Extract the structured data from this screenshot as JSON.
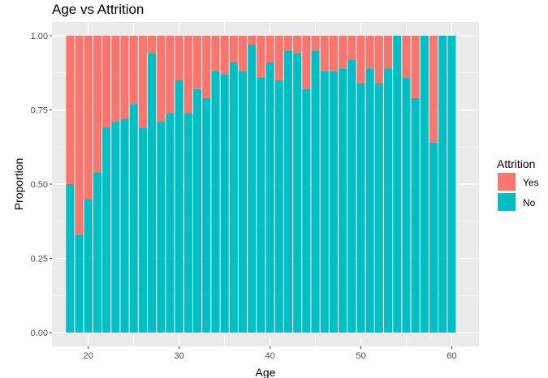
{
  "chart_data": {
    "type": "bar",
    "stacked": true,
    "title": "Age vs Attrition",
    "xlabel": "Age",
    "ylabel": "Proportion",
    "xlim": [
      16,
      63
    ],
    "ylim": [
      0,
      1
    ],
    "x_ticks": [
      20,
      30,
      40,
      50,
      60
    ],
    "y_ticks": [
      0,
      0.25,
      0.5,
      0.75,
      1
    ],
    "y_tick_labels": [
      "0.00",
      "0.25",
      "0.50",
      "0.75",
      "1.00"
    ],
    "legend_title": "Attrition",
    "legend_position": "right",
    "grid": true,
    "colors": {
      "Yes": "#F8766D",
      "No": "#00BFC4",
      "panel": "#EBEBEB",
      "grid": "#FFFFFF"
    },
    "x": [
      18,
      19,
      20,
      21,
      22,
      23,
      24,
      25,
      26,
      27,
      28,
      29,
      30,
      31,
      32,
      33,
      34,
      35,
      36,
      37,
      38,
      39,
      40,
      41,
      42,
      43,
      44,
      45,
      46,
      47,
      48,
      49,
      50,
      51,
      52,
      53,
      54,
      55,
      56,
      57,
      58,
      59,
      60
    ],
    "series": [
      {
        "name": "No",
        "values": [
          0.5,
          0.33,
          0.45,
          0.54,
          0.69,
          0.71,
          0.72,
          0.77,
          0.69,
          0.94,
          0.71,
          0.74,
          0.85,
          0.74,
          0.82,
          0.79,
          0.88,
          0.87,
          0.91,
          0.88,
          0.97,
          0.86,
          0.91,
          0.85,
          0.95,
          0.94,
          0.82,
          0.95,
          0.88,
          0.88,
          0.89,
          0.92,
          0.84,
          0.89,
          0.84,
          0.89,
          1.0,
          0.86,
          0.79,
          1.0,
          0.64,
          1.0,
          1.0
        ]
      },
      {
        "name": "Yes",
        "values": [
          0.5,
          0.67,
          0.55,
          0.46,
          0.31,
          0.29,
          0.28,
          0.23,
          0.31,
          0.06,
          0.29,
          0.26,
          0.15,
          0.26,
          0.18,
          0.21,
          0.12,
          0.13,
          0.09,
          0.12,
          0.03,
          0.14,
          0.09,
          0.15,
          0.05,
          0.06,
          0.18,
          0.05,
          0.12,
          0.12,
          0.11,
          0.08,
          0.16,
          0.11,
          0.16,
          0.11,
          0.0,
          0.14,
          0.21,
          0.0,
          0.36,
          0.0,
          0.0
        ]
      }
    ]
  }
}
